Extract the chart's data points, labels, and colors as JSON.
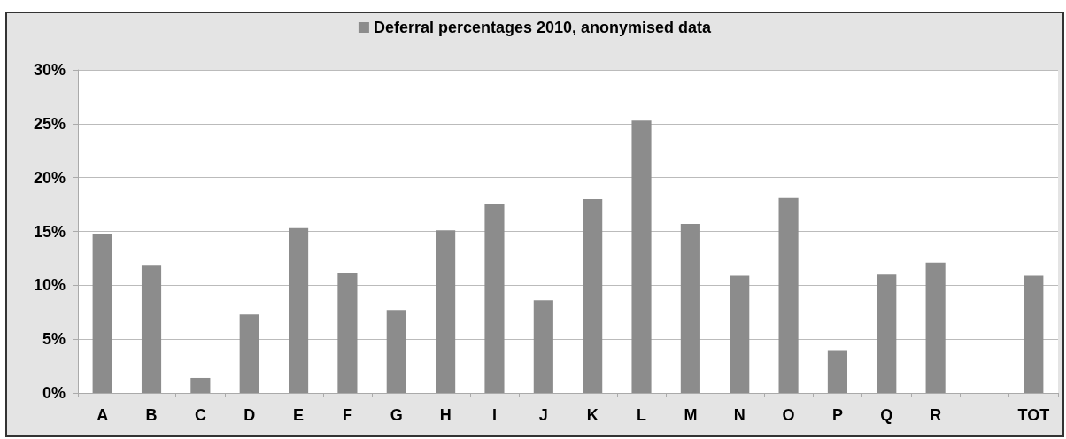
{
  "chart_data": {
    "type": "bar",
    "categories": [
      "A",
      "B",
      "C",
      "D",
      "E",
      "F",
      "G",
      "H",
      "I",
      "J",
      "K",
      "L",
      "M",
      "N",
      "O",
      "P",
      "Q",
      "R",
      null,
      "TOT"
    ],
    "series": [
      {
        "name": "Deferral percentages 2010, anonymised data",
        "color": "#8c8c8c",
        "values": [
          14.8,
          11.9,
          1.4,
          7.3,
          15.3,
          11.1,
          7.7,
          15.1,
          17.5,
          8.6,
          18.0,
          25.3,
          15.7,
          10.9,
          18.1,
          3.9,
          11.0,
          12.1,
          null,
          10.9
        ]
      }
    ],
    "ylim": [
      0,
      30
    ],
    "yticks": [
      {
        "value": 0,
        "label": "0%"
      },
      {
        "value": 5,
        "label": "5%"
      },
      {
        "value": 10,
        "label": "10%"
      },
      {
        "value": 15,
        "label": "15%"
      },
      {
        "value": 20,
        "label": "20%"
      },
      {
        "value": 25,
        "label": "25%"
      },
      {
        "value": 30,
        "label": "30%"
      }
    ],
    "grid": "y",
    "legend": "top"
  }
}
